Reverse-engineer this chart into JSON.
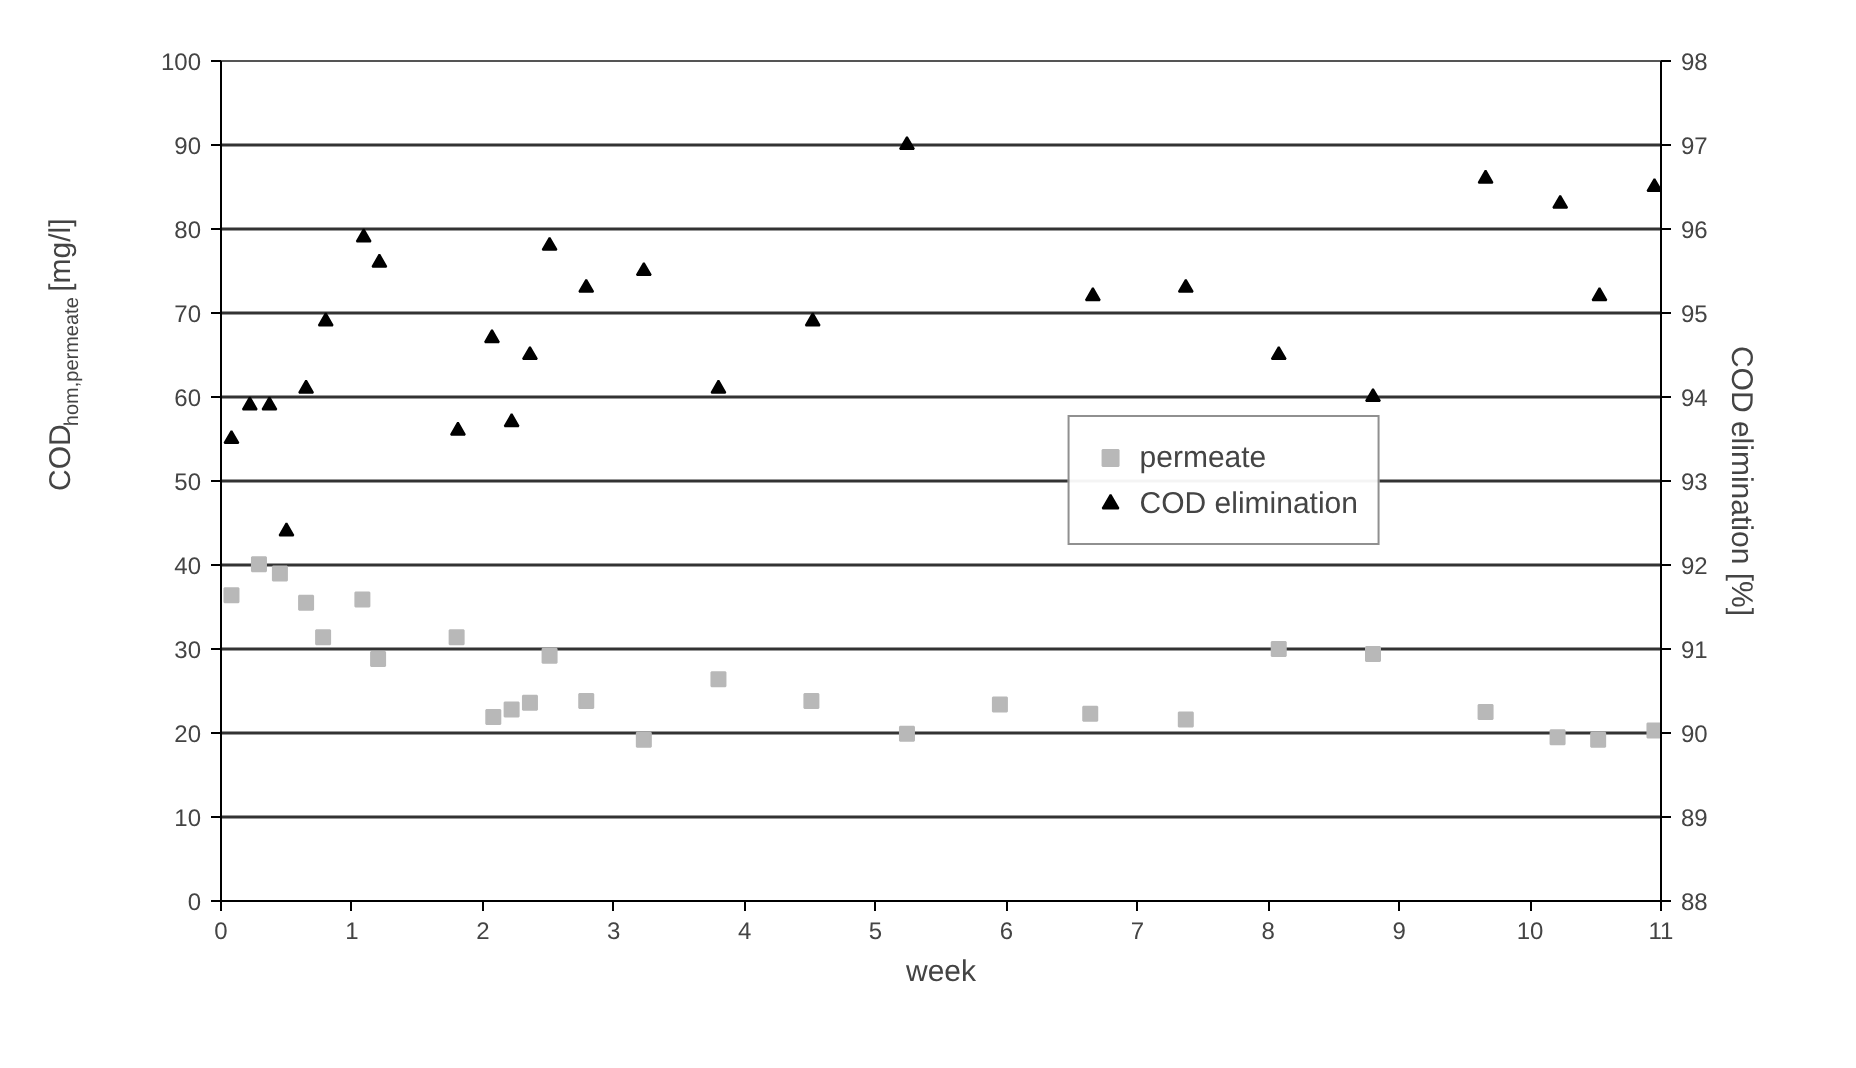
{
  "chart_data": {
    "type": "scatter",
    "xlabel": "week",
    "ylabel": "COD$_{hom,permeate}$ [mg/l]",
    "y2label": "COD elimination [%]",
    "xlim": [
      0,
      11
    ],
    "xticks": [
      0,
      1,
      2,
      3,
      4,
      5,
      6,
      7,
      8,
      9,
      10,
      11
    ],
    "ylim": [
      0,
      100
    ],
    "yticks": [
      0,
      10,
      20,
      30,
      40,
      50,
      60,
      70,
      80,
      90,
      100
    ],
    "y2lim": [
      88,
      98
    ],
    "y2ticks": [
      88,
      89,
      90,
      91,
      92,
      93,
      94,
      95,
      96,
      97,
      98
    ],
    "grid": "y",
    "legend": "right",
    "series": [
      {
        "name": "permeate",
        "color": "#b8b8b8",
        "marker": "square",
        "x": [
          0.08,
          0.29,
          0.45,
          0.65,
          0.78,
          1.08,
          1.2,
          1.8,
          2.08,
          2.22,
          2.36,
          2.51,
          2.79,
          3.23,
          3.8,
          4.51,
          5.24,
          5.95,
          6.64,
          7.37,
          8.08,
          8.8,
          9.66,
          10.21,
          10.52,
          10.95
        ],
        "values": [
          36.4,
          40.1,
          39.0,
          35.5,
          31.4,
          35.9,
          28.8,
          31.4,
          21.9,
          22.8,
          23.6,
          29.2,
          23.8,
          19.2,
          26.4,
          23.8,
          19.9,
          23.4,
          22.3,
          21.6,
          30.0,
          29.4,
          22.5,
          19.5,
          19.2,
          20.3
        ]
      },
      {
        "name": "COD elimination",
        "color": "#000000",
        "marker": "triangle",
        "axis": "y2",
        "x": [
          0.08,
          0.22,
          0.37,
          0.5,
          0.65,
          0.8,
          1.09,
          1.21,
          1.81,
          2.07,
          2.22,
          2.36,
          2.51,
          2.79,
          3.23,
          3.8,
          4.52,
          5.24,
          6.66,
          7.37,
          8.08,
          8.8,
          9.66,
          10.23,
          10.53,
          10.95
        ],
        "values": [
          93.5,
          93.9,
          93.9,
          92.4,
          94.1,
          94.9,
          95.9,
          95.6,
          93.6,
          94.7,
          93.7,
          94.5,
          95.8,
          95.3,
          95.5,
          94.1,
          94.9,
          97.0,
          95.2,
          95.3,
          94.5,
          94.0,
          96.6,
          96.3,
          95.2,
          96.5
        ]
      }
    ]
  }
}
